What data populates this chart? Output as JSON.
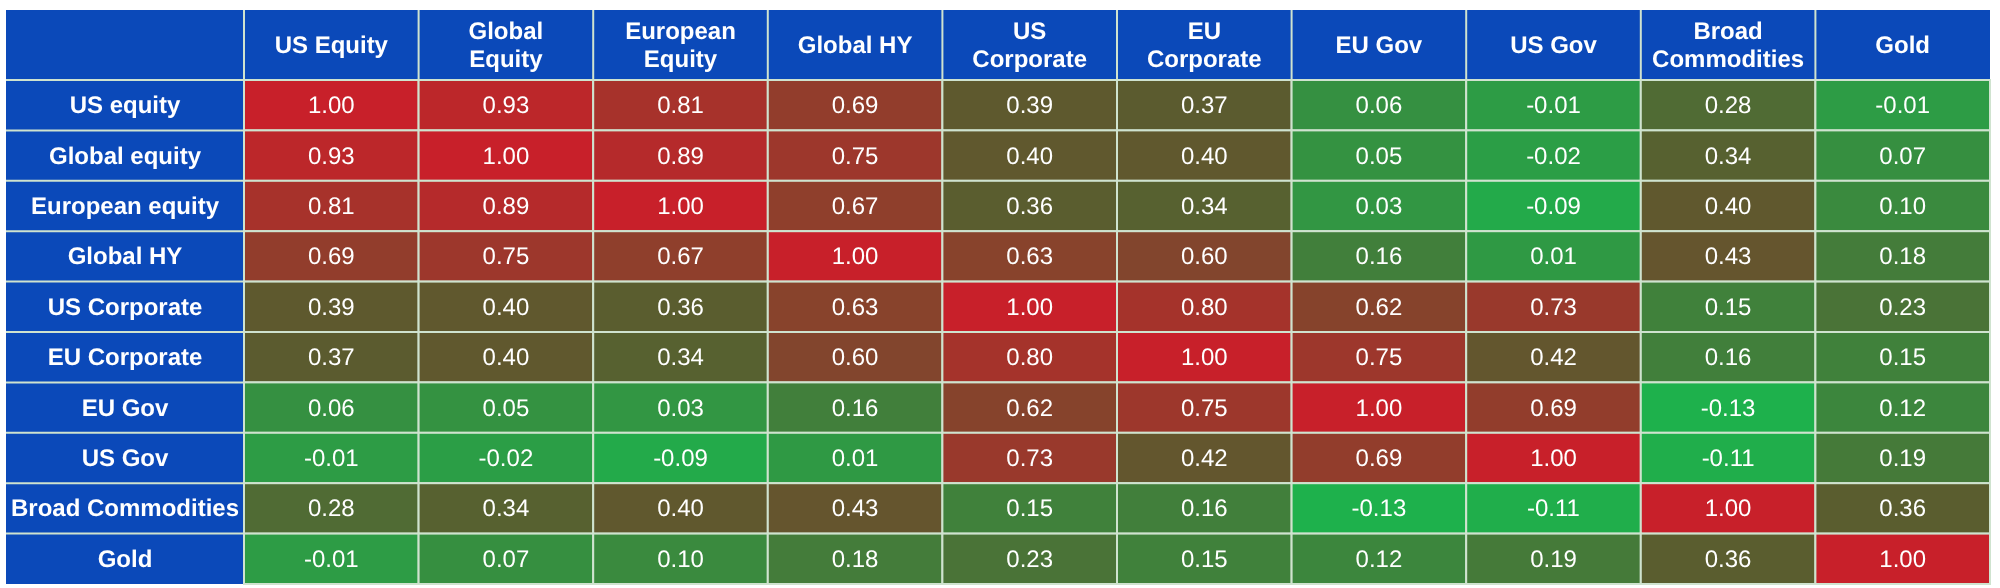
{
  "chart_data": {
    "type": "heatmap",
    "categories": [
      "US Equity",
      "Global Equity",
      "European Equity",
      "Global HY",
      "US Corporate",
      "EU Corporate",
      "EU Gov",
      "US Gov",
      "Broad Commodities",
      "Gold"
    ],
    "y_categories": [
      "US equity",
      "Global equity",
      "European equity",
      "Global HY",
      "US Corporate",
      "EU Corporate",
      "EU Gov",
      "US Gov",
      "Broad Commodities",
      "Gold"
    ],
    "cells": [
      [
        1.0,
        0.93,
        0.81,
        0.69,
        0.39,
        0.37,
        0.06,
        -0.01,
        0.28,
        -0.01
      ],
      [
        0.93,
        1.0,
        0.89,
        0.75,
        0.4,
        0.4,
        0.05,
        -0.02,
        0.34,
        0.07
      ],
      [
        0.81,
        0.89,
        1.0,
        0.67,
        0.36,
        0.34,
        0.03,
        -0.09,
        0.4,
        0.1
      ],
      [
        0.69,
        0.75,
        0.67,
        1.0,
        0.63,
        0.6,
        0.16,
        0.01,
        0.43,
        0.18
      ],
      [
        0.39,
        0.4,
        0.36,
        0.63,
        1.0,
        0.8,
        0.62,
        0.73,
        0.15,
        0.23
      ],
      [
        0.37,
        0.4,
        0.34,
        0.6,
        0.8,
        1.0,
        0.75,
        0.42,
        0.16,
        0.15
      ],
      [
        0.06,
        0.05,
        0.03,
        0.16,
        0.62,
        0.75,
        1.0,
        0.69,
        -0.13,
        0.12
      ],
      [
        -0.01,
        -0.02,
        -0.09,
        0.01,
        0.73,
        0.42,
        0.69,
        1.0,
        -0.11,
        0.19
      ],
      [
        0.28,
        0.34,
        0.4,
        0.43,
        0.15,
        0.16,
        -0.13,
        -0.11,
        1.0,
        0.36
      ],
      [
        -0.01,
        0.07,
        0.1,
        0.18,
        0.23,
        0.15,
        0.12,
        0.19,
        0.36,
        1.0
      ]
    ],
    "cell_labels": [
      [
        "1.00",
        "0.93",
        "0.81",
        "0.69",
        "0.39",
        "0.37",
        "0.06",
        "-0.01",
        "0.28",
        "-0.01"
      ],
      [
        "0.93",
        "1.00",
        "0.89",
        "0.75",
        "0.40",
        "0.40",
        "0.05",
        "-0.02",
        "0.34",
        "0.07"
      ],
      [
        "0.81",
        "0.89",
        "1.00",
        "0.67",
        "0.36",
        "0.34",
        "0.03",
        "-0.09",
        "0.40",
        "0.10"
      ],
      [
        "0.69",
        "0.75",
        "0.67",
        "1.00",
        "0.63",
        "0.60",
        "0.16",
        "0.01",
        "0.43",
        "0.18"
      ],
      [
        "0.39",
        "0.40",
        "0.36",
        "0.63",
        "1.00",
        "0.80",
        "0.62",
        "0.73",
        "0.15",
        "0.23"
      ],
      [
        "0.37",
        "0.40",
        "0.34",
        "0.60",
        "0.80",
        "1.00",
        "0.75",
        "0.42",
        "0.16",
        "0.15"
      ],
      [
        "0.06",
        "0.05",
        "0.03",
        "0.16",
        "0.62",
        "0.75",
        "1.00",
        "0.69",
        "-0.13",
        "0.12"
      ],
      [
        "-0.01",
        "-0.02",
        "-0.09",
        "0.01",
        "0.73",
        "0.42",
        "0.69",
        "1.00",
        "-0.11",
        "0.19"
      ],
      [
        "0.28",
        "0.34",
        "0.40",
        "0.43",
        "0.15",
        "0.16",
        "-0.13",
        "-0.11",
        "1.00",
        "0.36"
      ],
      [
        "-0.01",
        "0.07",
        "0.10",
        "0.18",
        "0.23",
        "0.15",
        "0.12",
        "0.19",
        "0.36",
        "1.00"
      ]
    ]
  }
}
